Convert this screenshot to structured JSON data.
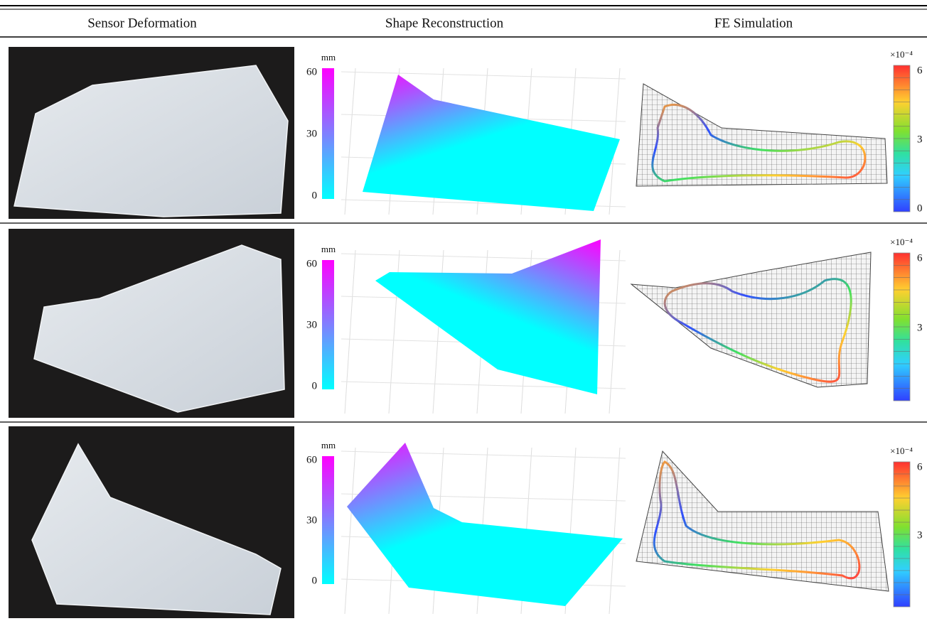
{
  "header": {
    "columns": [
      "Sensor Deformation",
      "Shape Reconstruction",
      "FE Simulation"
    ]
  },
  "rows": [
    {
      "reconstruction_colorbar": {
        "unit": "mm",
        "ticks": [
          "60",
          "30",
          "0"
        ]
      },
      "fe_colorbar": {
        "unit": "×10⁻⁴",
        "ticks": [
          "6",
          "3",
          "0"
        ]
      }
    },
    {
      "reconstruction_colorbar": {
        "unit": "mm",
        "ticks": [
          "60",
          "30",
          "0"
        ]
      },
      "fe_colorbar": {
        "unit": "×10⁻⁴",
        "ticks": [
          "6",
          "3"
        ]
      }
    },
    {
      "reconstruction_colorbar": {
        "unit": "mm",
        "ticks": [
          "60",
          "30",
          "0"
        ]
      },
      "fe_colorbar": {
        "unit": "×10⁻⁴",
        "ticks": [
          "6",
          "3"
        ]
      }
    }
  ]
}
